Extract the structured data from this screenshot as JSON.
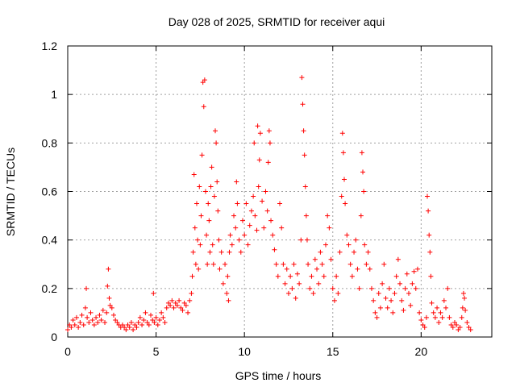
{
  "chart_data": {
    "type": "scatter",
    "title": "Day 028 of 2025, SRMTID for receiver aqui",
    "xlabel": "GPS time / hours",
    "ylabel": "SRMTID / TECUs",
    "xlim": [
      0,
      24
    ],
    "ylim": [
      0,
      1.2
    ],
    "x_ticks": [
      0,
      5,
      10,
      15,
      20
    ],
    "x_tick_labels": [
      "0",
      "5",
      "10",
      "15",
      "20"
    ],
    "y_ticks": [
      0,
      0.2,
      0.4,
      0.6,
      0.8,
      1.0,
      1.2
    ],
    "y_tick_labels": [
      "0",
      "0.2",
      "0.4",
      "0.6",
      "0.8",
      "1",
      "1.2"
    ],
    "grid": true,
    "marker": "plus",
    "series": [
      {
        "name": "SRMTID",
        "color": "#ff0000",
        "points": [
          [
            0.0,
            0.03
          ],
          [
            0.1,
            0.05
          ],
          [
            0.2,
            0.04
          ],
          [
            0.3,
            0.07
          ],
          [
            0.4,
            0.05
          ],
          [
            0.5,
            0.08
          ],
          [
            0.6,
            0.04
          ],
          [
            0.7,
            0.06
          ],
          [
            0.8,
            0.09
          ],
          [
            0.9,
            0.05
          ],
          [
            1.0,
            0.12
          ],
          [
            1.05,
            0.2
          ],
          [
            1.1,
            0.08
          ],
          [
            1.2,
            0.06
          ],
          [
            1.3,
            0.1
          ],
          [
            1.4,
            0.07
          ],
          [
            1.5,
            0.05
          ],
          [
            1.6,
            0.08
          ],
          [
            1.7,
            0.06
          ],
          [
            1.8,
            0.09
          ],
          [
            1.9,
            0.07
          ],
          [
            2.0,
            0.11
          ],
          [
            2.1,
            0.06
          ],
          [
            2.2,
            0.1
          ],
          [
            2.25,
            0.21
          ],
          [
            2.3,
            0.28
          ],
          [
            2.35,
            0.16
          ],
          [
            2.4,
            0.13
          ],
          [
            2.5,
            0.12
          ],
          [
            2.6,
            0.09
          ],
          [
            2.7,
            0.07
          ],
          [
            2.8,
            0.06
          ],
          [
            2.9,
            0.05
          ],
          [
            3.0,
            0.04
          ],
          [
            3.1,
            0.05
          ],
          [
            3.2,
            0.04
          ],
          [
            3.3,
            0.03
          ],
          [
            3.4,
            0.05
          ],
          [
            3.5,
            0.04
          ],
          [
            3.6,
            0.06
          ],
          [
            3.7,
            0.03
          ],
          [
            3.8,
            0.05
          ],
          [
            3.9,
            0.04
          ],
          [
            4.0,
            0.06
          ],
          [
            4.1,
            0.08
          ],
          [
            4.2,
            0.05
          ],
          [
            4.3,
            0.07
          ],
          [
            4.4,
            0.1
          ],
          [
            4.5,
            0.06
          ],
          [
            4.6,
            0.05
          ],
          [
            4.7,
            0.09
          ],
          [
            4.8,
            0.07
          ],
          [
            4.85,
            0.18
          ],
          [
            4.9,
            0.06
          ],
          [
            5.0,
            0.08
          ],
          [
            5.1,
            0.05
          ],
          [
            5.2,
            0.07
          ],
          [
            5.3,
            0.1
          ],
          [
            5.4,
            0.08
          ],
          [
            5.5,
            0.06
          ],
          [
            5.6,
            0.12
          ],
          [
            5.7,
            0.14
          ],
          [
            5.8,
            0.13
          ],
          [
            5.9,
            0.15
          ],
          [
            6.0,
            0.12
          ],
          [
            6.1,
            0.14
          ],
          [
            6.2,
            0.13
          ],
          [
            6.3,
            0.15
          ],
          [
            6.4,
            0.12
          ],
          [
            6.5,
            0.11
          ],
          [
            6.6,
            0.14
          ],
          [
            6.7,
            0.13
          ],
          [
            6.8,
            0.1
          ],
          [
            6.9,
            0.15
          ],
          [
            7.0,
            0.18
          ],
          [
            7.05,
            0.25
          ],
          [
            7.1,
            0.35
          ],
          [
            7.15,
            0.67
          ],
          [
            7.2,
            0.45
          ],
          [
            7.25,
            0.3
          ],
          [
            7.3,
            0.55
          ],
          [
            7.35,
            0.4
          ],
          [
            7.4,
            0.28
          ],
          [
            7.45,
            0.62
          ],
          [
            7.5,
            0.38
          ],
          [
            7.55,
            0.5
          ],
          [
            7.6,
            0.75
          ],
          [
            7.65,
            1.05
          ],
          [
            7.7,
            0.95
          ],
          [
            7.75,
            1.06
          ],
          [
            7.8,
            0.6
          ],
          [
            7.85,
            0.42
          ],
          [
            7.9,
            0.3
          ],
          [
            7.95,
            0.55
          ],
          [
            8.0,
            0.48
          ],
          [
            8.05,
            0.35
          ],
          [
            8.1,
            0.62
          ],
          [
            8.15,
            0.7
          ],
          [
            8.2,
            0.38
          ],
          [
            8.25,
            0.3
          ],
          [
            8.3,
            0.58
          ],
          [
            8.35,
            0.85
          ],
          [
            8.4,
            0.8
          ],
          [
            8.45,
            0.64
          ],
          [
            8.5,
            0.52
          ],
          [
            8.55,
            0.4
          ],
          [
            8.6,
            0.28
          ],
          [
            8.7,
            0.35
          ],
          [
            8.8,
            0.22
          ],
          [
            8.9,
            0.3
          ],
          [
            9.0,
            0.18
          ],
          [
            9.05,
            0.25
          ],
          [
            9.1,
            0.15
          ],
          [
            9.15,
            0.35
          ],
          [
            9.2,
            0.42
          ],
          [
            9.3,
            0.38
          ],
          [
            9.4,
            0.5
          ],
          [
            9.5,
            0.45
          ],
          [
            9.55,
            0.64
          ],
          [
            9.6,
            0.55
          ],
          [
            9.7,
            0.4
          ],
          [
            9.8,
            0.35
          ],
          [
            9.9,
            0.48
          ],
          [
            10.0,
            0.42
          ],
          [
            10.1,
            0.55
          ],
          [
            10.2,
            0.38
          ],
          [
            10.3,
            0.46
          ],
          [
            10.4,
            0.52
          ],
          [
            10.5,
            0.58
          ],
          [
            10.55,
            0.8
          ],
          [
            10.6,
            0.5
          ],
          [
            10.7,
            0.44
          ],
          [
            10.75,
            0.87
          ],
          [
            10.8,
            0.62
          ],
          [
            10.85,
            0.73
          ],
          [
            10.9,
            0.84
          ],
          [
            11.0,
            0.56
          ],
          [
            11.1,
            0.45
          ],
          [
            11.2,
            0.6
          ],
          [
            11.3,
            0.52
          ],
          [
            11.35,
            0.72
          ],
          [
            11.4,
            0.85
          ],
          [
            11.45,
            0.8
          ],
          [
            11.5,
            0.48
          ],
          [
            11.6,
            0.42
          ],
          [
            11.7,
            0.36
          ],
          [
            11.8,
            0.3
          ],
          [
            11.9,
            0.25
          ],
          [
            12.0,
            0.55
          ],
          [
            12.1,
            0.45
          ],
          [
            12.2,
            0.3
          ],
          [
            12.3,
            0.22
          ],
          [
            12.4,
            0.28
          ],
          [
            12.5,
            0.18
          ],
          [
            12.6,
            0.25
          ],
          [
            12.7,
            0.2
          ],
          [
            12.8,
            0.3
          ],
          [
            12.9,
            0.16
          ],
          [
            13.0,
            0.26
          ],
          [
            13.1,
            0.22
          ],
          [
            13.2,
            0.4
          ],
          [
            13.25,
            1.07
          ],
          [
            13.3,
            0.96
          ],
          [
            13.35,
            0.85
          ],
          [
            13.4,
            0.75
          ],
          [
            13.45,
            0.62
          ],
          [
            13.5,
            0.5
          ],
          [
            13.55,
            0.4
          ],
          [
            13.6,
            0.3
          ],
          [
            13.7,
            0.2
          ],
          [
            13.8,
            0.25
          ],
          [
            13.9,
            0.18
          ],
          [
            14.0,
            0.32
          ],
          [
            14.1,
            0.28
          ],
          [
            14.2,
            0.22
          ],
          [
            14.3,
            0.35
          ],
          [
            14.4,
            0.3
          ],
          [
            14.5,
            0.25
          ],
          [
            14.6,
            0.38
          ],
          [
            14.7,
            0.5
          ],
          [
            14.8,
            0.45
          ],
          [
            14.9,
            0.32
          ],
          [
            15.0,
            0.2
          ],
          [
            15.1,
            0.15
          ],
          [
            15.2,
            0.25
          ],
          [
            15.3,
            0.18
          ],
          [
            15.4,
            0.35
          ],
          [
            15.5,
            0.58
          ],
          [
            15.55,
            0.84
          ],
          [
            15.6,
            0.76
          ],
          [
            15.65,
            0.65
          ],
          [
            15.7,
            0.55
          ],
          [
            15.8,
            0.42
          ],
          [
            15.9,
            0.38
          ],
          [
            16.0,
            0.3
          ],
          [
            16.1,
            0.25
          ],
          [
            16.2,
            0.35
          ],
          [
            16.3,
            0.4
          ],
          [
            16.4,
            0.28
          ],
          [
            16.5,
            0.2
          ],
          [
            16.6,
            0.5
          ],
          [
            16.65,
            0.76
          ],
          [
            16.7,
            0.68
          ],
          [
            16.75,
            0.6
          ],
          [
            16.8,
            0.38
          ],
          [
            16.9,
            0.3
          ],
          [
            17.0,
            0.35
          ],
          [
            17.1,
            0.28
          ],
          [
            17.2,
            0.2
          ],
          [
            17.3,
            0.15
          ],
          [
            17.4,
            0.1
          ],
          [
            17.5,
            0.08
          ],
          [
            17.6,
            0.18
          ],
          [
            17.7,
            0.12
          ],
          [
            17.8,
            0.22
          ],
          [
            17.9,
            0.3
          ],
          [
            18.0,
            0.16
          ],
          [
            18.1,
            0.12
          ],
          [
            18.2,
            0.2
          ],
          [
            18.3,
            0.15
          ],
          [
            18.4,
            0.1
          ],
          [
            18.5,
            0.18
          ],
          [
            18.6,
            0.25
          ],
          [
            18.7,
            0.32
          ],
          [
            18.8,
            0.22
          ],
          [
            18.9,
            0.15
          ],
          [
            19.0,
            0.11
          ],
          [
            19.1,
            0.2
          ],
          [
            19.2,
            0.26
          ],
          [
            19.3,
            0.18
          ],
          [
            19.4,
            0.13
          ],
          [
            19.5,
            0.22
          ],
          [
            19.6,
            0.27
          ],
          [
            19.7,
            0.2
          ],
          [
            19.8,
            0.28
          ],
          [
            19.9,
            0.1
          ],
          [
            20.0,
            0.07
          ],
          [
            20.1,
            0.05
          ],
          [
            20.2,
            0.04
          ],
          [
            20.3,
            0.08
          ],
          [
            20.35,
            0.58
          ],
          [
            20.4,
            0.52
          ],
          [
            20.45,
            0.42
          ],
          [
            20.5,
            0.35
          ],
          [
            20.55,
            0.25
          ],
          [
            20.6,
            0.14
          ],
          [
            20.7,
            0.1
          ],
          [
            20.8,
            0.08
          ],
          [
            20.9,
            0.12
          ],
          [
            21.0,
            0.06
          ],
          [
            21.1,
            0.1
          ],
          [
            21.2,
            0.08
          ],
          [
            21.3,
            0.15
          ],
          [
            21.4,
            0.12
          ],
          [
            21.5,
            0.2
          ],
          [
            21.6,
            0.08
          ],
          [
            21.7,
            0.05
          ],
          [
            21.8,
            0.04
          ],
          [
            21.9,
            0.06
          ],
          [
            22.0,
            0.05
          ],
          [
            22.1,
            0.03
          ],
          [
            22.2,
            0.04
          ],
          [
            22.3,
            0.08
          ],
          [
            22.35,
            0.12
          ],
          [
            22.4,
            0.18
          ],
          [
            22.45,
            0.16
          ],
          [
            22.5,
            0.11
          ],
          [
            22.6,
            0.06
          ],
          [
            22.7,
            0.04
          ],
          [
            22.8,
            0.03
          ]
        ]
      }
    ]
  }
}
